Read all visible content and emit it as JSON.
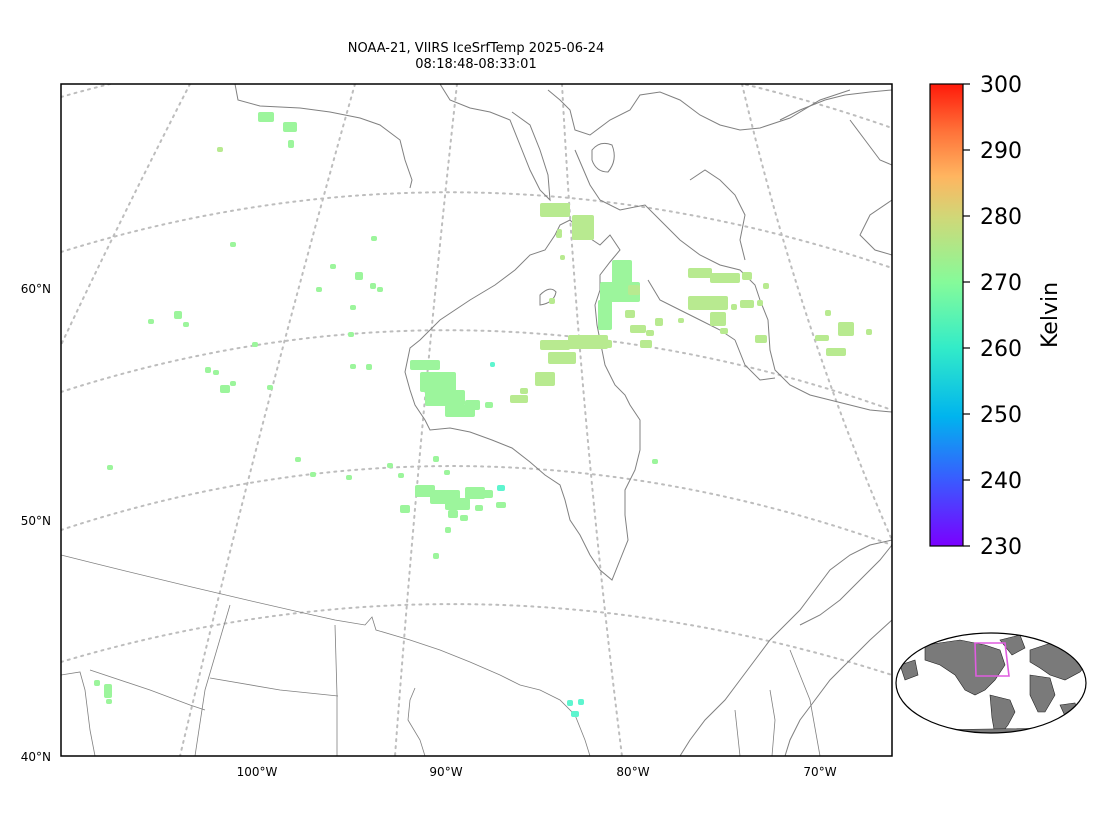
{
  "title": {
    "line1": "NOAA-21, VIIRS IceSrfTemp 2025-06-24",
    "line2": "08:18:48-08:33:01"
  },
  "axes": {
    "lat_labels": [
      "60°N",
      "50°N",
      "40°N"
    ],
    "lon_labels": [
      "100°W",
      "90°W",
      "80°W",
      "70°W"
    ]
  },
  "colorbar": {
    "label": "Kelvin",
    "ticks": [
      "300",
      "290",
      "280",
      "270",
      "260",
      "250",
      "240",
      "230"
    ],
    "min": 230,
    "max": 300,
    "colors": [
      "#7a00ff",
      "#3b59ff",
      "#00b4ee",
      "#33ecc8",
      "#85fb9a",
      "#cfd878",
      "#ffb560",
      "#ff7038",
      "#ff1a0a"
    ]
  },
  "pixel_colors": {
    "warm": "#b8ea90",
    "mid": "#9cf59c",
    "cold": "#5ef5cf"
  },
  "inset": {
    "region_color": "#e05ce0"
  }
}
